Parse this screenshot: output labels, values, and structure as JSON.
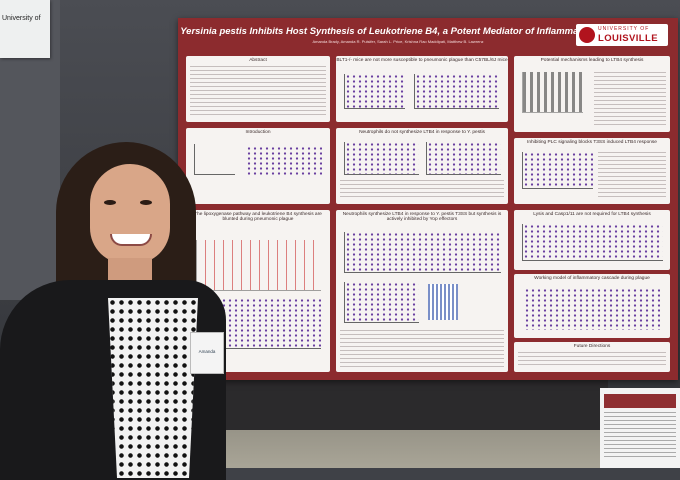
{
  "left_paper": {
    "text": "University of"
  },
  "poster": {
    "title": "Yersinia pestis Inhibits Host Synthesis of Leukotriene B4, a Potent Mediator of Inflammation",
    "authors": "Amanda Brady, Amanda R. Pulsifer, Sarah L. Price, Krishna Rao Maddipati, Matthew B. Lawrenz",
    "logo_top": "UNIVERSITY OF",
    "logo_main": "LOUISVILLE",
    "panels": {
      "abstract": "Abstract",
      "blt1": "BLT1-/- mice are not more susceptible to pneumonic plague than C57BL/6J mice",
      "mechanisms": "Potential mechanisms leading to LTB4 synthesis",
      "introduction": "Introduction",
      "neutrophils": "Neutrophils do not synthesize LTB4 in response to Y. pestis",
      "plc": "Inhibiting PLC signaling blocks T3SS induced LTB4 response",
      "lipoxygenase": "The lipoxygenase pathway and leukotriene B4 synthesis are blunted during pneumonic plague",
      "t3ss": "Neutrophils synthesize LTB4 in response to Y. pestis T3SS but synthesis is actively inhibited by Yop effectors",
      "lysis": "Lysis and Casp1/11 are not required for LTB4 synthesis",
      "model": "Working model of inflammatory cascade during plague",
      "future": "Future Directions"
    }
  },
  "badge": {
    "name": "Amanda"
  }
}
